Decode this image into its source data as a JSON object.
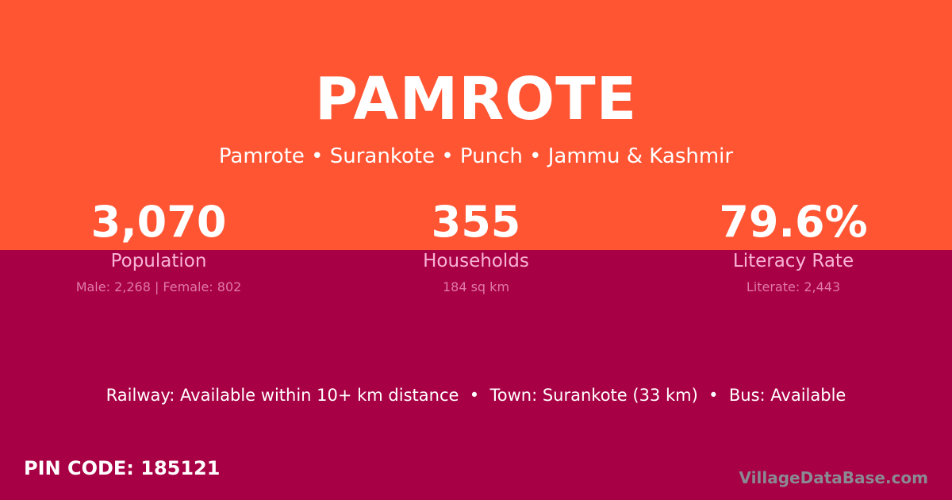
{
  "title": "PAMROTE",
  "subtitle": "Pamrote • Surankote • Punch • Jammu & Kashmir",
  "stats": [
    {
      "value": "3,070",
      "label": "Population",
      "detail": "Male: 2,268 | Female: 802"
    },
    {
      "value": "355",
      "label": "Households",
      "detail": "184 sq km"
    },
    {
      "value": "79.6%",
      "label": "Literacy Rate",
      "detail": "Literate: 2,443"
    }
  ],
  "access": "Railway: Available within 10+ km distance  •  Town: Surankote (33 km)  •  Bus: Available",
  "pin": "PIN CODE: 185121",
  "brand": "VillageDataBase.com",
  "colors": {
    "top": "#ff5533",
    "bottom": "#a80044"
  }
}
